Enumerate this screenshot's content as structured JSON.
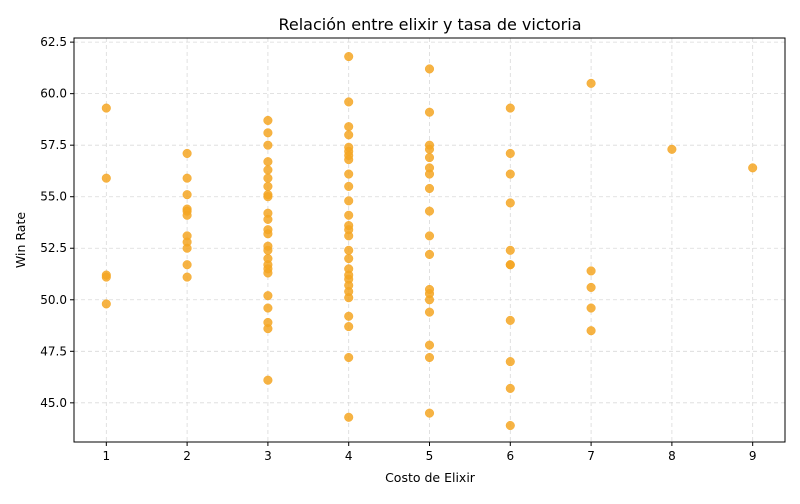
{
  "chart_data": {
    "type": "scatter",
    "title": "Relación entre elixir y tasa de victoria",
    "xlabel": "Costo de Elixir",
    "ylabel": "Win Rate",
    "xlim": [
      0.6,
      9.4
    ],
    "ylim": [
      43.1,
      62.7
    ],
    "xticks": [
      1,
      2,
      3,
      4,
      5,
      6,
      7,
      8,
      9
    ],
    "yticks": [
      45.0,
      47.5,
      50.0,
      52.5,
      55.0,
      57.5,
      60.0,
      62.5
    ],
    "grid": true,
    "point_color": "#f5a623",
    "points": [
      {
        "x": 1,
        "y": 59.3
      },
      {
        "x": 1,
        "y": 55.9
      },
      {
        "x": 1,
        "y": 51.2
      },
      {
        "x": 1,
        "y": 51.1
      },
      {
        "x": 1,
        "y": 49.8
      },
      {
        "x": 2,
        "y": 57.1
      },
      {
        "x": 2,
        "y": 55.9
      },
      {
        "x": 2,
        "y": 55.1
      },
      {
        "x": 2,
        "y": 54.4
      },
      {
        "x": 2,
        "y": 54.3
      },
      {
        "x": 2,
        "y": 54.1
      },
      {
        "x": 2,
        "y": 53.1
      },
      {
        "x": 2,
        "y": 52.8
      },
      {
        "x": 2,
        "y": 52.5
      },
      {
        "x": 2,
        "y": 51.7
      },
      {
        "x": 2,
        "y": 51.1
      },
      {
        "x": 3,
        "y": 58.7
      },
      {
        "x": 3,
        "y": 58.1
      },
      {
        "x": 3,
        "y": 57.5
      },
      {
        "x": 3,
        "y": 56.7
      },
      {
        "x": 3,
        "y": 56.3
      },
      {
        "x": 3,
        "y": 55.9
      },
      {
        "x": 3,
        "y": 55.5
      },
      {
        "x": 3,
        "y": 55.1
      },
      {
        "x": 3,
        "y": 55.0
      },
      {
        "x": 3,
        "y": 54.2
      },
      {
        "x": 3,
        "y": 53.9
      },
      {
        "x": 3,
        "y": 53.4
      },
      {
        "x": 3,
        "y": 53.2
      },
      {
        "x": 3,
        "y": 52.6
      },
      {
        "x": 3,
        "y": 52.4
      },
      {
        "x": 3,
        "y": 52.0
      },
      {
        "x": 3,
        "y": 51.7
      },
      {
        "x": 3,
        "y": 51.5
      },
      {
        "x": 3,
        "y": 51.3
      },
      {
        "x": 3,
        "y": 50.2
      },
      {
        "x": 3,
        "y": 49.6
      },
      {
        "x": 3,
        "y": 48.9
      },
      {
        "x": 3,
        "y": 48.6
      },
      {
        "x": 3,
        "y": 46.1
      },
      {
        "x": 4,
        "y": 61.8
      },
      {
        "x": 4,
        "y": 59.6
      },
      {
        "x": 4,
        "y": 58.4
      },
      {
        "x": 4,
        "y": 58.0
      },
      {
        "x": 4,
        "y": 57.4
      },
      {
        "x": 4,
        "y": 57.2
      },
      {
        "x": 4,
        "y": 57.0
      },
      {
        "x": 4,
        "y": 56.8
      },
      {
        "x": 4,
        "y": 56.1
      },
      {
        "x": 4,
        "y": 55.5
      },
      {
        "x": 4,
        "y": 54.8
      },
      {
        "x": 4,
        "y": 54.1
      },
      {
        "x": 4,
        "y": 53.6
      },
      {
        "x": 4,
        "y": 53.4
      },
      {
        "x": 4,
        "y": 53.1
      },
      {
        "x": 4,
        "y": 52.4
      },
      {
        "x": 4,
        "y": 52.0
      },
      {
        "x": 4,
        "y": 51.5
      },
      {
        "x": 4,
        "y": 51.2
      },
      {
        "x": 4,
        "y": 51.0
      },
      {
        "x": 4,
        "y": 50.7
      },
      {
        "x": 4,
        "y": 50.4
      },
      {
        "x": 4,
        "y": 50.1
      },
      {
        "x": 4,
        "y": 49.2
      },
      {
        "x": 4,
        "y": 48.7
      },
      {
        "x": 4,
        "y": 47.2
      },
      {
        "x": 4,
        "y": 44.3
      },
      {
        "x": 5,
        "y": 61.2
      },
      {
        "x": 5,
        "y": 59.1
      },
      {
        "x": 5,
        "y": 57.5
      },
      {
        "x": 5,
        "y": 57.3
      },
      {
        "x": 5,
        "y": 56.9
      },
      {
        "x": 5,
        "y": 56.4
      },
      {
        "x": 5,
        "y": 56.1
      },
      {
        "x": 5,
        "y": 55.4
      },
      {
        "x": 5,
        "y": 54.3
      },
      {
        "x": 5,
        "y": 53.1
      },
      {
        "x": 5,
        "y": 52.2
      },
      {
        "x": 5,
        "y": 50.5
      },
      {
        "x": 5,
        "y": 50.3
      },
      {
        "x": 5,
        "y": 50.0
      },
      {
        "x": 5,
        "y": 49.4
      },
      {
        "x": 5,
        "y": 47.8
      },
      {
        "x": 5,
        "y": 47.2
      },
      {
        "x": 5,
        "y": 44.5
      },
      {
        "x": 6,
        "y": 59.3
      },
      {
        "x": 6,
        "y": 57.1
      },
      {
        "x": 6,
        "y": 56.1
      },
      {
        "x": 6,
        "y": 54.7
      },
      {
        "x": 6,
        "y": 52.4
      },
      {
        "x": 6,
        "y": 51.7
      },
      {
        "x": 6,
        "y": 51.7
      },
      {
        "x": 6,
        "y": 49.0
      },
      {
        "x": 6,
        "y": 47.0
      },
      {
        "x": 6,
        "y": 45.7
      },
      {
        "x": 6,
        "y": 43.9
      },
      {
        "x": 7,
        "y": 60.5
      },
      {
        "x": 7,
        "y": 51.4
      },
      {
        "x": 7,
        "y": 50.6
      },
      {
        "x": 7,
        "y": 49.6
      },
      {
        "x": 7,
        "y": 48.5
      },
      {
        "x": 8,
        "y": 57.3
      },
      {
        "x": 9,
        "y": 56.4
      }
    ]
  }
}
